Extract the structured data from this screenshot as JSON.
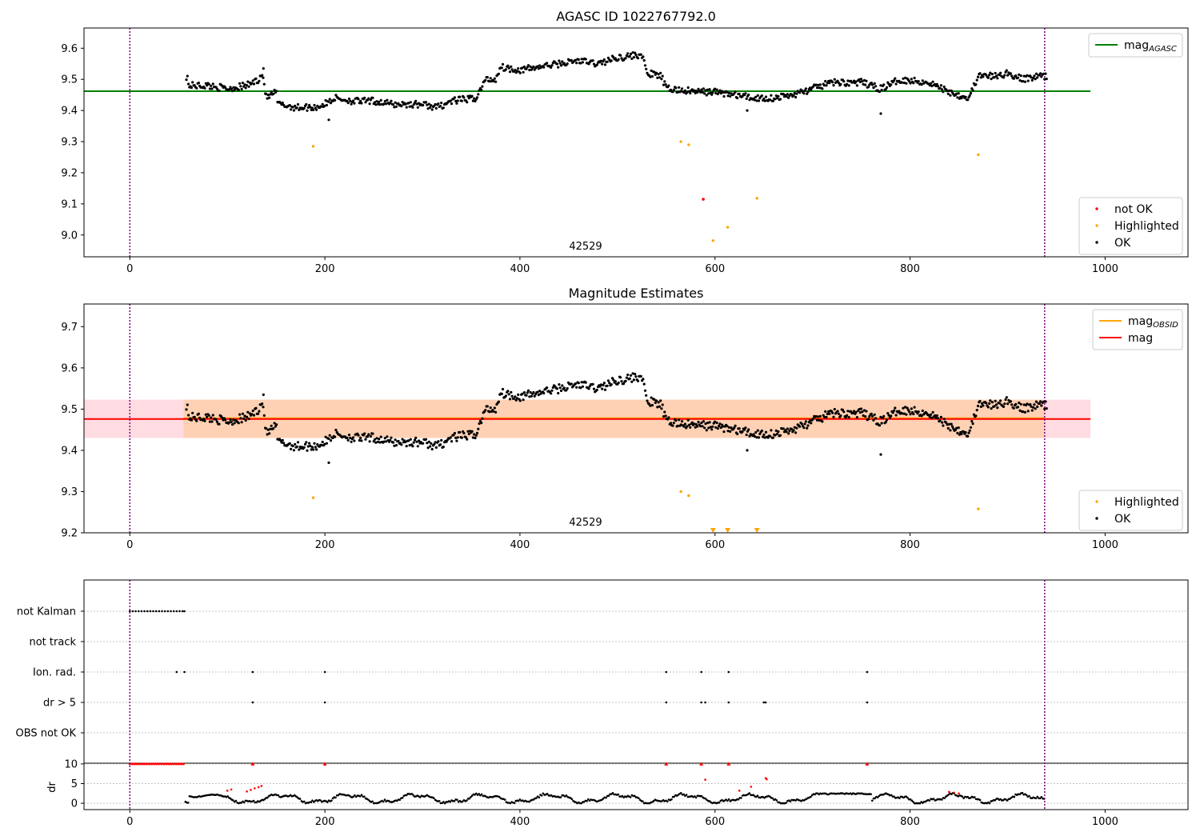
{
  "chart_data": [
    {
      "type": "scatter",
      "title": "AGASC ID 1022767792.0",
      "xlim": [
        -47,
        1085
      ],
      "ylim": [
        8.93,
        9.665
      ],
      "x_ticks": [
        0,
        200,
        400,
        600,
        800,
        1000
      ],
      "y_ticks": [
        9.0,
        9.1,
        9.2,
        9.3,
        9.4,
        9.5,
        9.6
      ],
      "vlines": [
        0,
        938
      ],
      "obsid_label": {
        "text": "42529",
        "x": 469,
        "y": 8.94
      },
      "reference_line": {
        "name": "mag_AGASC",
        "y": 9.462,
        "x": [
          -47,
          985
        ],
        "color": "#008000"
      },
      "series": [
        {
          "name": "not OK",
          "color": "#ff0000",
          "x": [
            588
          ],
          "y": [
            9.115
          ]
        },
        {
          "name": "Highlighted",
          "color": "#ffa500",
          "x": [
            188,
            565,
            573,
            598,
            613,
            643,
            870
          ],
          "y": [
            9.285,
            9.3,
            9.29,
            8.982,
            9.025,
            9.118,
            9.258
          ]
        },
        {
          "name": "OK",
          "color": "#000000",
          "x": [],
          "y": []
        }
      ],
      "legends": [
        {
          "placement": "upper right",
          "entries": [
            {
              "label": "mag",
              "sub": "AGASC",
              "kind": "line",
              "color": "#008000"
            }
          ]
        },
        {
          "placement": "lower right",
          "entries": [
            {
              "label": "not OK",
              "kind": "dot",
              "color": "#ff0000"
            },
            {
              "label": "Highlighted",
              "kind": "dot",
              "color": "#ffa500"
            },
            {
              "label": "OK",
              "kind": "dot",
              "color": "#000000"
            }
          ]
        }
      ]
    },
    {
      "type": "scatter",
      "title": "Magnitude Estimates",
      "xlim": [
        -47,
        1085
      ],
      "ylim": [
        9.2,
        9.755
      ],
      "x_ticks": [
        0,
        200,
        400,
        600,
        800,
        1000
      ],
      "y_ticks": [
        9.2,
        9.3,
        9.4,
        9.5,
        9.6,
        9.7
      ],
      "vlines": [
        0,
        938
      ],
      "obsid_label": {
        "text": "42529",
        "x": 469,
        "y": 9.21
      },
      "mag_band": {
        "y": [
          9.43,
          9.523
        ],
        "x": [
          -47,
          985
        ],
        "color": "#ffc0cb"
      },
      "obsid_band": {
        "y": [
          9.43,
          9.523
        ],
        "x": [
          55,
          938
        ],
        "color": "#ffa500"
      },
      "mag_lines": [
        {
          "name": "mag_OBSID",
          "y": 9.478,
          "x": [
            55,
            938
          ],
          "color": "#ffa500"
        },
        {
          "name": "mag",
          "y": 9.476,
          "x": [
            -47,
            985
          ],
          "color": "#ff0000"
        }
      ],
      "series": [
        {
          "name": "Highlighted",
          "color": "#ffa500",
          "x": [
            188,
            565,
            573,
            870
          ],
          "y": [
            9.285,
            9.3,
            9.29,
            9.258
          ]
        },
        {
          "name": "Highlighted (below axis)",
          "color": "#ffa500",
          "x": [
            598,
            613,
            643
          ],
          "y": [
            9.2,
            9.2,
            9.2
          ]
        },
        {
          "name": "OK",
          "color": "#000000",
          "x": [],
          "y": []
        }
      ],
      "legends": [
        {
          "placement": "upper right",
          "entries": [
            {
              "label": "mag",
              "sub": "OBSID",
              "kind": "line",
              "color": "#ffa500"
            },
            {
              "label": "mag",
              "kind": "line",
              "color": "#ff0000"
            }
          ]
        },
        {
          "placement": "lower right",
          "entries": [
            {
              "label": "Highlighted",
              "kind": "dot",
              "color": "#ffa500"
            },
            {
              "label": "OK",
              "kind": "dot",
              "color": "#000000"
            }
          ]
        }
      ]
    },
    {
      "type": "scatter",
      "title": "",
      "xlim": [
        -47,
        1085
      ],
      "x_ticks": [
        0,
        200,
        400,
        600,
        800,
        1000
      ],
      "vlines": [
        0,
        938
      ],
      "flag_rows": [
        {
          "label": "not Kalman",
          "x": [
            0,
            3,
            6,
            9,
            12,
            15,
            18,
            21,
            24,
            27,
            30,
            33,
            36,
            39,
            42,
            45,
            48,
            51,
            54,
            56
          ]
        },
        {
          "label": "not track",
          "x": []
        },
        {
          "label": "Ion. rad.",
          "x": [
            48,
            56,
            126,
            200,
            550,
            586,
            614,
            756
          ]
        },
        {
          "label": "dr > 5",
          "x": [
            126,
            200,
            550,
            586,
            590,
            614,
            650,
            652,
            756
          ]
        },
        {
          "label": "OBS not OK",
          "x": []
        }
      ],
      "dr": {
        "ylabel": "dr",
        "ylim": [
          -1,
          11
        ],
        "y_ticks": [
          0,
          5,
          10
        ],
        "clip_value": 10,
        "clipped_x": [
          126,
          200,
          550,
          586,
          614,
          756
        ],
        "red_x": [
          100,
          104,
          120,
          124,
          128,
          132,
          135,
          590,
          625,
          637,
          652,
          653,
          840,
          845,
          850
        ],
        "red_y": [
          3.2,
          3.5,
          3.0,
          3.4,
          3.8,
          4.1,
          4.4,
          6.0,
          3.2,
          4.2,
          6.4,
          6.1,
          2.9,
          2.7,
          2.5
        ]
      }
    }
  ]
}
